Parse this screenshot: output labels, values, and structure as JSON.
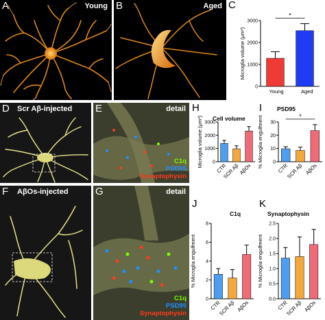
{
  "panels": {
    "A": {
      "letter": "A",
      "title": "Young"
    },
    "B": {
      "letter": "B",
      "title": "Aged"
    },
    "D": {
      "letter": "D",
      "title": "Scr Aβ-injected"
    },
    "E": {
      "letter": "E",
      "title": "detail",
      "legend": [
        "C1q",
        "PSD95",
        "Synaptophysin"
      ]
    },
    "F": {
      "letter": "F",
      "title": "AβOs-injected"
    },
    "G": {
      "letter": "G",
      "title": "detail",
      "legend": [
        "C1q",
        "PSD95",
        "Synaptophysin"
      ]
    }
  },
  "legend_colors": {
    "C1q": "#7CFC00",
    "PSD95": "#1E90FF",
    "Synaptophysin": "#FF3B1F"
  },
  "chart_data": [
    {
      "id": "C",
      "letter": "C",
      "type": "bar",
      "title": "",
      "categories": [
        "Young",
        "Aged"
      ],
      "values": [
        1280,
        2540
      ],
      "errors": [
        300,
        320
      ],
      "colors": [
        "#ef3b36",
        "#1f3cf2"
      ],
      "ylabel": "Microglia volume (μm³)",
      "ylim": [
        0,
        3000
      ],
      "yticks": [
        0,
        1000,
        2000,
        3000
      ],
      "significance": [
        {
          "from": 0,
          "to": 1,
          "label": "*"
        }
      ],
      "grid": false
    },
    {
      "id": "H",
      "letter": "H",
      "type": "bar",
      "title": "Cell volume",
      "categories": [
        "CTR",
        "SCR Aβ",
        "AβOs"
      ],
      "values": [
        1380,
        980,
        2320
      ],
      "errors": [
        230,
        220,
        330
      ],
      "colors": [
        "#4f9df0",
        "#f4a73a",
        "#ef6b78"
      ],
      "ylabel": "Microglia volume (μm³)",
      "ylim": [
        0,
        3000
      ],
      "yticks": [
        0,
        1000,
        2000,
        3000
      ],
      "significance": [],
      "grid": false
    },
    {
      "id": "I",
      "letter": "I",
      "type": "bar",
      "title": "PSD95",
      "categories": [
        "CTR",
        "SCR Aβ",
        "AβOs"
      ],
      "values": [
        9.8,
        8.5,
        23.5
      ],
      "errors": [
        1.5,
        2.5,
        4.5
      ],
      "colors": [
        "#4f9df0",
        "#f4a73a",
        "#ef6b78"
      ],
      "ylabel": "% Microglia engulfment",
      "ylim": [
        0,
        30
      ],
      "yticks": [
        0,
        10,
        20,
        30
      ],
      "significance": [
        {
          "from": 0,
          "to": 2,
          "label": "*"
        }
      ],
      "grid": false
    },
    {
      "id": "J",
      "letter": "J",
      "type": "bar",
      "title": "C1q",
      "categories": [
        "CTR",
        "SCR Aβ",
        "AβOs"
      ],
      "values": [
        2.6,
        2.2,
        4.7
      ],
      "errors": [
        0.6,
        0.9,
        1.0
      ],
      "colors": [
        "#4f9df0",
        "#f4a73a",
        "#ef6b78"
      ],
      "ylabel": "% Microglia engulfment",
      "ylim": [
        0,
        8
      ],
      "yticks": [
        0,
        2,
        4,
        6,
        8
      ],
      "significance": [],
      "grid": false
    },
    {
      "id": "K",
      "letter": "K",
      "type": "bar",
      "title": "Synaptophysin",
      "categories": [
        "CTR",
        "SCR Aβ",
        "AβOs"
      ],
      "values": [
        1.35,
        1.4,
        1.8
      ],
      "errors": [
        0.35,
        0.65,
        0.5
      ],
      "colors": [
        "#4f9df0",
        "#f4a73a",
        "#ef6b78"
      ],
      "ylabel": "% Microglia engulfment",
      "ylim": [
        0,
        2.5
      ],
      "yticks": [
        0.0,
        0.5,
        1.0,
        1.5,
        2.0,
        2.5
      ],
      "significance": [],
      "grid": false
    }
  ]
}
